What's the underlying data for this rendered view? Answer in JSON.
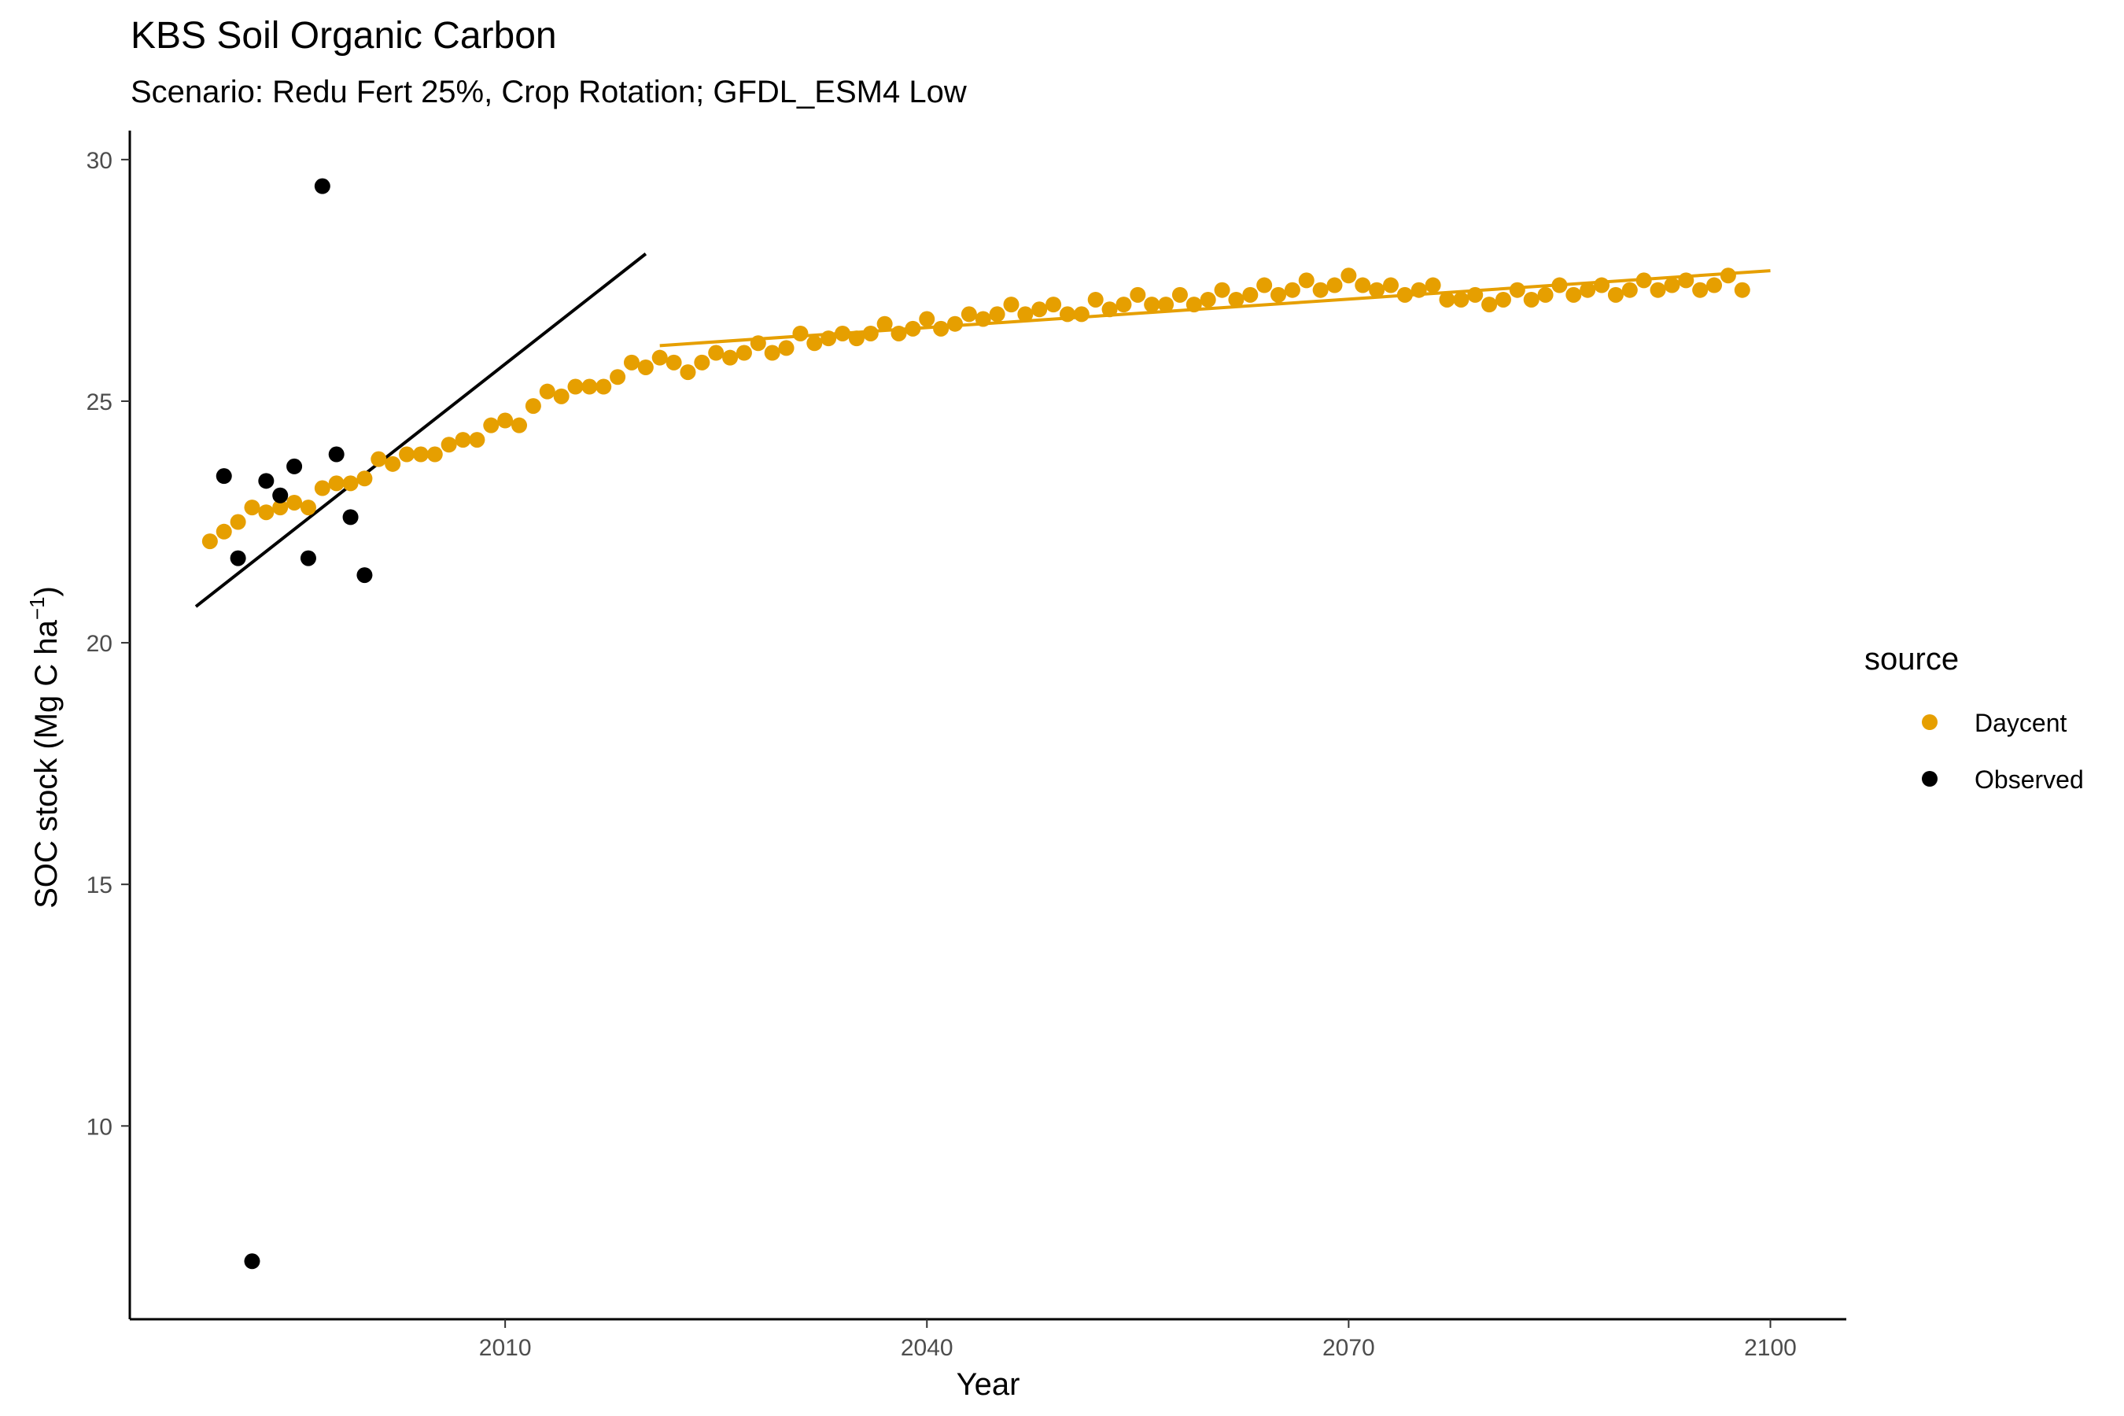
{
  "chart_data": {
    "type": "scatter",
    "title": "KBS Soil Organic Carbon",
    "subtitle": "Scenario: Redu Fert 25%, Crop Rotation; GFDL_ESM4 Low",
    "xlabel": "Year",
    "ylabel": "SOC stock (Mg C ha",
    "ylabel_sup": "−1",
    "ylabel_close": ")",
    "xlim": [
      1983.3,
      2105.4
    ],
    "ylim": [
      6.0,
      30.6
    ],
    "xticks": [
      2010,
      2040,
      2070,
      2100
    ],
    "yticks": [
      10,
      15,
      20,
      25,
      30
    ],
    "grid": false,
    "legend": {
      "title": "source",
      "position": "right",
      "entries": [
        {
          "label": "Daycent",
          "color": "#E69F00"
        },
        {
          "label": "Observed",
          "color": "#000000"
        }
      ]
    },
    "series": [
      {
        "name": "Daycent",
        "color": "#E69F00",
        "points": [
          [
            1989,
            22.1
          ],
          [
            1990,
            22.3
          ],
          [
            1991,
            22.5
          ],
          [
            1992,
            22.8
          ],
          [
            1993,
            22.7
          ],
          [
            1994,
            22.8
          ],
          [
            1995,
            22.9
          ],
          [
            1996,
            22.8
          ],
          [
            1997,
            23.2
          ],
          [
            1998,
            23.3
          ],
          [
            1999,
            23.3
          ],
          [
            2000,
            23.4
          ],
          [
            2001,
            23.8
          ],
          [
            2002,
            23.7
          ],
          [
            2003,
            23.9
          ],
          [
            2004,
            23.9
          ],
          [
            2005,
            23.9
          ],
          [
            2006,
            24.1
          ],
          [
            2007,
            24.2
          ],
          [
            2008,
            24.2
          ],
          [
            2009,
            24.5
          ],
          [
            2010,
            24.6
          ],
          [
            2011,
            24.5
          ],
          [
            2012,
            24.9
          ],
          [
            2013,
            25.2
          ],
          [
            2014,
            25.1
          ],
          [
            2015,
            25.3
          ],
          [
            2016,
            25.3
          ],
          [
            2017,
            25.3
          ],
          [
            2018,
            25.5
          ],
          [
            2019,
            25.8
          ],
          [
            2020,
            25.7
          ],
          [
            2021,
            25.9
          ],
          [
            2022,
            25.8
          ],
          [
            2023,
            25.6
          ],
          [
            2024,
            25.8
          ],
          [
            2025,
            26.0
          ],
          [
            2026,
            25.9
          ],
          [
            2027,
            26.0
          ],
          [
            2028,
            26.2
          ],
          [
            2029,
            26.0
          ],
          [
            2030,
            26.1
          ],
          [
            2031,
            26.4
          ],
          [
            2032,
            26.2
          ],
          [
            2033,
            26.3
          ],
          [
            2034,
            26.4
          ],
          [
            2035,
            26.3
          ],
          [
            2036,
            26.4
          ],
          [
            2037,
            26.6
          ],
          [
            2038,
            26.4
          ],
          [
            2039,
            26.5
          ],
          [
            2040,
            26.7
          ],
          [
            2041,
            26.5
          ],
          [
            2042,
            26.6
          ],
          [
            2043,
            26.8
          ],
          [
            2044,
            26.7
          ],
          [
            2045,
            26.8
          ],
          [
            2046,
            27.0
          ],
          [
            2047,
            26.8
          ],
          [
            2048,
            26.9
          ],
          [
            2049,
            27.0
          ],
          [
            2050,
            26.8
          ],
          [
            2051,
            26.8
          ],
          [
            2052,
            27.1
          ],
          [
            2053,
            26.9
          ],
          [
            2054,
            27.0
          ],
          [
            2055,
            27.2
          ],
          [
            2056,
            27.0
          ],
          [
            2057,
            27.0
          ],
          [
            2058,
            27.2
          ],
          [
            2059,
            27.0
          ],
          [
            2060,
            27.1
          ],
          [
            2061,
            27.3
          ],
          [
            2062,
            27.1
          ],
          [
            2063,
            27.2
          ],
          [
            2064,
            27.4
          ],
          [
            2065,
            27.2
          ],
          [
            2066,
            27.3
          ],
          [
            2067,
            27.5
          ],
          [
            2068,
            27.3
          ],
          [
            2069,
            27.4
          ],
          [
            2070,
            27.6
          ],
          [
            2071,
            27.4
          ],
          [
            2072,
            27.3
          ],
          [
            2073,
            27.4
          ],
          [
            2074,
            27.2
          ],
          [
            2075,
            27.3
          ],
          [
            2076,
            27.4
          ],
          [
            2077,
            27.1
          ],
          [
            2078,
            27.1
          ],
          [
            2079,
            27.2
          ],
          [
            2080,
            27.0
          ],
          [
            2081,
            27.1
          ],
          [
            2082,
            27.3
          ],
          [
            2083,
            27.1
          ],
          [
            2084,
            27.2
          ],
          [
            2085,
            27.4
          ],
          [
            2086,
            27.2
          ],
          [
            2087,
            27.3
          ],
          [
            2088,
            27.4
          ],
          [
            2089,
            27.2
          ],
          [
            2090,
            27.3
          ],
          [
            2091,
            27.5
          ],
          [
            2092,
            27.3
          ],
          [
            2093,
            27.4
          ],
          [
            2094,
            27.5
          ],
          [
            2095,
            27.3
          ],
          [
            2096,
            27.4
          ],
          [
            2097,
            27.6
          ],
          [
            2098,
            27.3
          ]
        ],
        "fit_line": [
          [
            2021,
            26.15
          ],
          [
            2100,
            27.7
          ]
        ]
      },
      {
        "name": "Observed",
        "color": "#000000",
        "points": [
          [
            1990,
            23.45
          ],
          [
            1991,
            21.75
          ],
          [
            1992,
            7.2
          ],
          [
            1993,
            23.35
          ],
          [
            1994,
            23.05
          ],
          [
            1995,
            23.65
          ],
          [
            1996,
            21.75
          ],
          [
            1997,
            29.45
          ],
          [
            1998,
            23.9
          ],
          [
            1999,
            22.6
          ],
          [
            2000,
            21.4
          ]
        ],
        "fit_line": [
          [
            1988,
            20.75
          ],
          [
            2020,
            28.05
          ]
        ]
      }
    ]
  }
}
